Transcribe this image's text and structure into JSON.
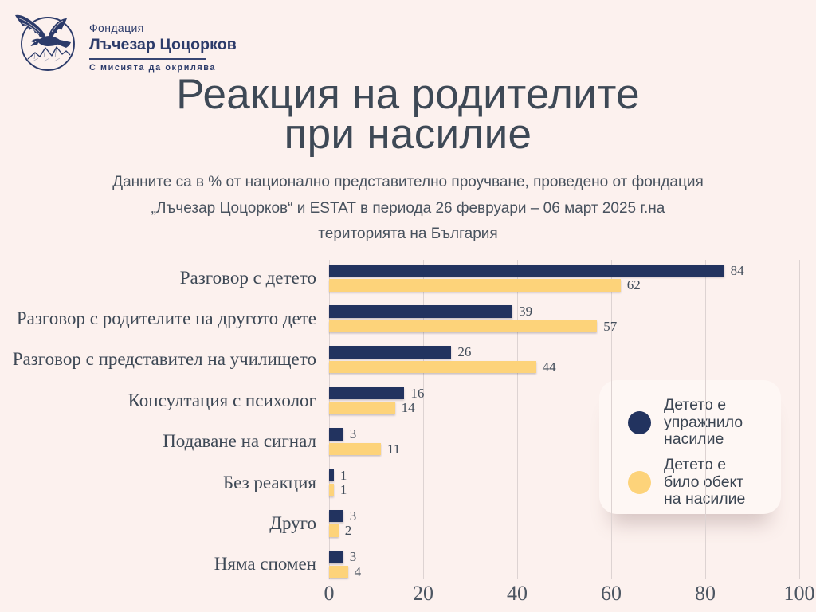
{
  "logo": {
    "org_type": "Фондация",
    "org_name": "Лъчезар Цоцорков",
    "tagline": "С мисията да окрилява",
    "emblem": "eagle-over-mountains",
    "color": "#2c3b6a"
  },
  "title": {
    "line1": "Реакция на родителите",
    "line2": "при насилие"
  },
  "subtitle_lines": [
    "Данните са в % от национално представително проучване, проведено от фондация",
    "„Лъчезар Цоцорков“ и ESTAT в периода 26 февруари – 06 март 2025 г.на",
    "територията на България"
  ],
  "chart_data": {
    "type": "bar",
    "orientation": "horizontal",
    "title": "Реакция на родителите при насилие",
    "categories": [
      "Разговор с детето",
      "Разговор с родителите на другото дете",
      "Разговор с представител на училището",
      "Консултация с психолог",
      "Подаване на сигнал",
      "Без реакция",
      "Друго",
      "Няма спомен"
    ],
    "series": [
      {
        "name": "Детето е упражнило насилие",
        "color": "#22335f",
        "values": [
          84,
          39,
          26,
          16,
          3,
          1,
          3,
          3
        ]
      },
      {
        "name": "Детето е било обект на насилие",
        "color": "#fdd37a",
        "values": [
          62,
          57,
          44,
          14,
          11,
          1,
          2,
          4
        ]
      }
    ],
    "xlim": [
      0,
      100
    ],
    "x_ticks": [
      0,
      20,
      40,
      60,
      80,
      100
    ],
    "grid": true,
    "legend_position": "right"
  },
  "colors": {
    "background": "#fcf1ee",
    "navy": "#22335f",
    "yellow": "#fdd37a",
    "text": "#3e4956",
    "gridline": "#ddd3d2"
  }
}
